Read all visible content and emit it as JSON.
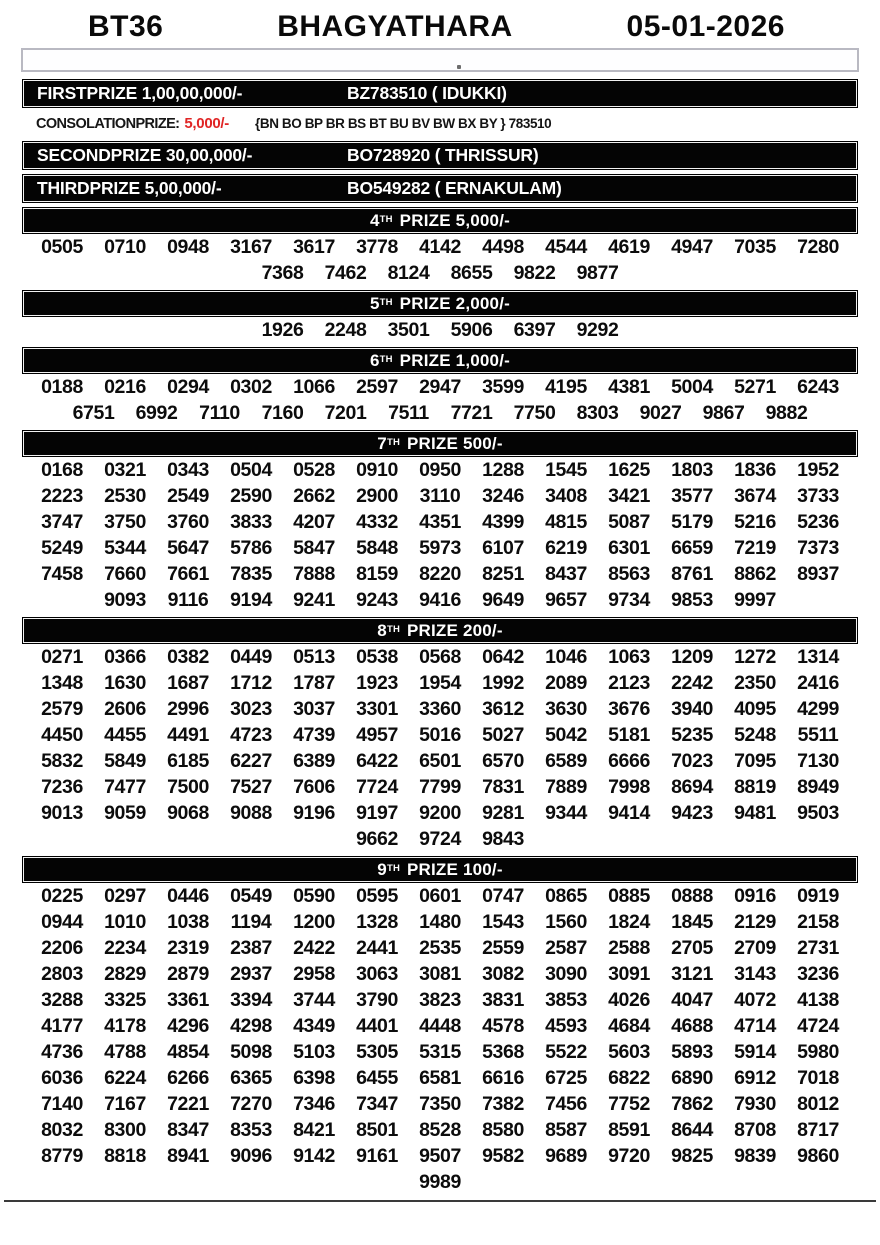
{
  "header": {
    "draw_code": "BT36",
    "title": "BHAGYATHARA",
    "date": "05-01-2026"
  },
  "top_prizes": [
    {
      "label": "FIRSTPRIZE 1,00,00,000/-",
      "winner": "BZ783510 ( IDUKKI)"
    },
    {
      "label": "SECONDPRIZE 30,00,000/-",
      "winner": "BO728920 ( THRISSUR)"
    },
    {
      "label": "THIRDPRIZE 5,00,000/-",
      "winner": "BO549282 ( ERNAKULAM)"
    }
  ],
  "consolation": {
    "label": "CONSOLATIONPRIZE:",
    "amount": "5,000/-",
    "series": "{BN BO BP BR BS BT BU BV BW BX BY } 783510"
  },
  "colors": {
    "accent_red": "#e02525",
    "bar_bg": "#040404",
    "text": "#111111"
  },
  "sections": [
    {
      "ordinal": "4",
      "sup": "TH",
      "rest": "PRIZE 5,000/-",
      "rows": [
        [
          "0505",
          "0710",
          "0948",
          "3167",
          "3617",
          "3778",
          "4142",
          "4498",
          "4544",
          "4619",
          "4947",
          "7035",
          "7280"
        ],
        [
          "7368",
          "7462",
          "8124",
          "8655",
          "9822",
          "9877"
        ]
      ]
    },
    {
      "ordinal": "5",
      "sup": "TH",
      "rest": "PRIZE 2,000/-",
      "rows": [
        [
          "1926",
          "2248",
          "3501",
          "5906",
          "6397",
          "9292"
        ]
      ]
    },
    {
      "ordinal": "6",
      "sup": "TH",
      "rest": "PRIZE 1,000/-",
      "rows": [
        [
          "0188",
          "0216",
          "0294",
          "0302",
          "1066",
          "2597",
          "2947",
          "3599",
          "4195",
          "4381",
          "5004",
          "5271",
          "6243"
        ],
        [
          "6751",
          "6992",
          "7110",
          "7160",
          "7201",
          "7511",
          "7721",
          "7750",
          "8303",
          "9027",
          "9867",
          "9882"
        ]
      ]
    },
    {
      "ordinal": "7",
      "sup": "TH",
      "rest": "PRIZE 500/-",
      "rows": [
        [
          "0168",
          "0321",
          "0343",
          "0504",
          "0528",
          "0910",
          "0950",
          "1288",
          "1545",
          "1625",
          "1803",
          "1836",
          "1952"
        ],
        [
          "2223",
          "2530",
          "2549",
          "2590",
          "2662",
          "2900",
          "3110",
          "3246",
          "3408",
          "3421",
          "3577",
          "3674",
          "3733"
        ],
        [
          "3747",
          "3750",
          "3760",
          "3833",
          "4207",
          "4332",
          "4351",
          "4399",
          "4815",
          "5087",
          "5179",
          "5216",
          "5236"
        ],
        [
          "5249",
          "5344",
          "5647",
          "5786",
          "5847",
          "5848",
          "5973",
          "6107",
          "6219",
          "6301",
          "6659",
          "7219",
          "7373"
        ],
        [
          "7458",
          "7660",
          "7661",
          "7835",
          "7888",
          "8159",
          "8220",
          "8251",
          "8437",
          "8563",
          "8761",
          "8862",
          "8937"
        ],
        [
          "9093",
          "9116",
          "9194",
          "9241",
          "9243",
          "9416",
          "9649",
          "9657",
          "9734",
          "9853",
          "9997"
        ]
      ]
    },
    {
      "ordinal": "8",
      "sup": "TH",
      "rest": "PRIZE 200/-",
      "rows": [
        [
          "0271",
          "0366",
          "0382",
          "0449",
          "0513",
          "0538",
          "0568",
          "0642",
          "1046",
          "1063",
          "1209",
          "1272",
          "1314"
        ],
        [
          "1348",
          "1630",
          "1687",
          "1712",
          "1787",
          "1923",
          "1954",
          "1992",
          "2089",
          "2123",
          "2242",
          "2350",
          "2416"
        ],
        [
          "2579",
          "2606",
          "2996",
          "3023",
          "3037",
          "3301",
          "3360",
          "3612",
          "3630",
          "3676",
          "3940",
          "4095",
          "4299"
        ],
        [
          "4450",
          "4455",
          "4491",
          "4723",
          "4739",
          "4957",
          "5016",
          "5027",
          "5042",
          "5181",
          "5235",
          "5248",
          "5511"
        ],
        [
          "5832",
          "5849",
          "6185",
          "6227",
          "6389",
          "6422",
          "6501",
          "6570",
          "6589",
          "6666",
          "7023",
          "7095",
          "7130"
        ],
        [
          "7236",
          "7477",
          "7500",
          "7527",
          "7606",
          "7724",
          "7799",
          "7831",
          "7889",
          "7998",
          "8694",
          "8819",
          "8949"
        ],
        [
          "9013",
          "9059",
          "9068",
          "9088",
          "9196",
          "9197",
          "9200",
          "9281",
          "9344",
          "9414",
          "9423",
          "9481",
          "9503"
        ],
        [
          "9662",
          "9724",
          "9843"
        ]
      ]
    },
    {
      "ordinal": "9",
      "sup": "TH",
      "rest": "PRIZE 100/-",
      "rows": [
        [
          "0225",
          "0297",
          "0446",
          "0549",
          "0590",
          "0595",
          "0601",
          "0747",
          "0865",
          "0885",
          "0888",
          "0916",
          "0919"
        ],
        [
          "0944",
          "1010",
          "1038",
          "1194",
          "1200",
          "1328",
          "1480",
          "1543",
          "1560",
          "1824",
          "1845",
          "2129",
          "2158"
        ],
        [
          "2206",
          "2234",
          "2319",
          "2387",
          "2422",
          "2441",
          "2535",
          "2559",
          "2587",
          "2588",
          "2705",
          "2709",
          "2731"
        ],
        [
          "2803",
          "2829",
          "2879",
          "2937",
          "2958",
          "3063",
          "3081",
          "3082",
          "3090",
          "3091",
          "3121",
          "3143",
          "3236"
        ],
        [
          "3288",
          "3325",
          "3361",
          "3394",
          "3744",
          "3790",
          "3823",
          "3831",
          "3853",
          "4026",
          "4047",
          "4072",
          "4138"
        ],
        [
          "4177",
          "4178",
          "4296",
          "4298",
          "4349",
          "4401",
          "4448",
          "4578",
          "4593",
          "4684",
          "4688",
          "4714",
          "4724"
        ],
        [
          "4736",
          "4788",
          "4854",
          "5098",
          "5103",
          "5305",
          "5315",
          "5368",
          "5522",
          "5603",
          "5893",
          "5914",
          "5980"
        ],
        [
          "6036",
          "6224",
          "6266",
          "6365",
          "6398",
          "6455",
          "6581",
          "6616",
          "6725",
          "6822",
          "6890",
          "6912",
          "7018"
        ],
        [
          "7140",
          "7167",
          "7221",
          "7270",
          "7346",
          "7347",
          "7350",
          "7382",
          "7456",
          "7752",
          "7862",
          "7930",
          "8012"
        ],
        [
          "8032",
          "8300",
          "8347",
          "8353",
          "8421",
          "8501",
          "8528",
          "8580",
          "8587",
          "8591",
          "8644",
          "8708",
          "8717"
        ],
        [
          "8779",
          "8818",
          "8941",
          "9096",
          "9142",
          "9161",
          "9507",
          "9582",
          "9689",
          "9720",
          "9825",
          "9839",
          "9860"
        ],
        [
          "9989"
        ]
      ]
    }
  ]
}
